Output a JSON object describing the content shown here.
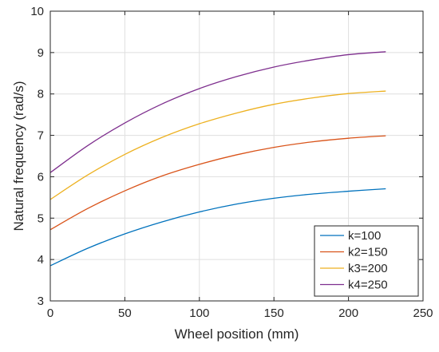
{
  "chart_data": {
    "type": "line",
    "xlabel": "Wheel position (mm)",
    "ylabel": "Natural frequency (rad/s)",
    "xlim": [
      0,
      250
    ],
    "ylim": [
      3,
      10
    ],
    "xticks": [
      0,
      50,
      100,
      150,
      200,
      250
    ],
    "yticks": [
      3,
      4,
      5,
      6,
      7,
      8,
      9,
      10
    ],
    "grid": true,
    "legend_position": "bottom-right",
    "x": [
      0,
      25,
      50,
      75,
      100,
      125,
      150,
      175,
      200,
      225
    ],
    "series": [
      {
        "name": "k=100",
        "color": "#0072BD",
        "values": [
          3.85,
          4.27,
          4.62,
          4.91,
          5.15,
          5.34,
          5.48,
          5.58,
          5.65,
          5.71
        ]
      },
      {
        "name": "k2=150",
        "color": "#D95319",
        "values": [
          4.72,
          5.23,
          5.66,
          6.02,
          6.3,
          6.53,
          6.71,
          6.84,
          6.93,
          6.99
        ]
      },
      {
        "name": "k3=200",
        "color": "#EDB120",
        "values": [
          5.45,
          6.04,
          6.54,
          6.95,
          7.28,
          7.54,
          7.75,
          7.9,
          8.01,
          8.07
        ]
      },
      {
        "name": "k4=250",
        "color": "#7E2F8E",
        "values": [
          6.1,
          6.75,
          7.3,
          7.76,
          8.13,
          8.42,
          8.65,
          8.82,
          8.95,
          9.02
        ]
      }
    ]
  }
}
